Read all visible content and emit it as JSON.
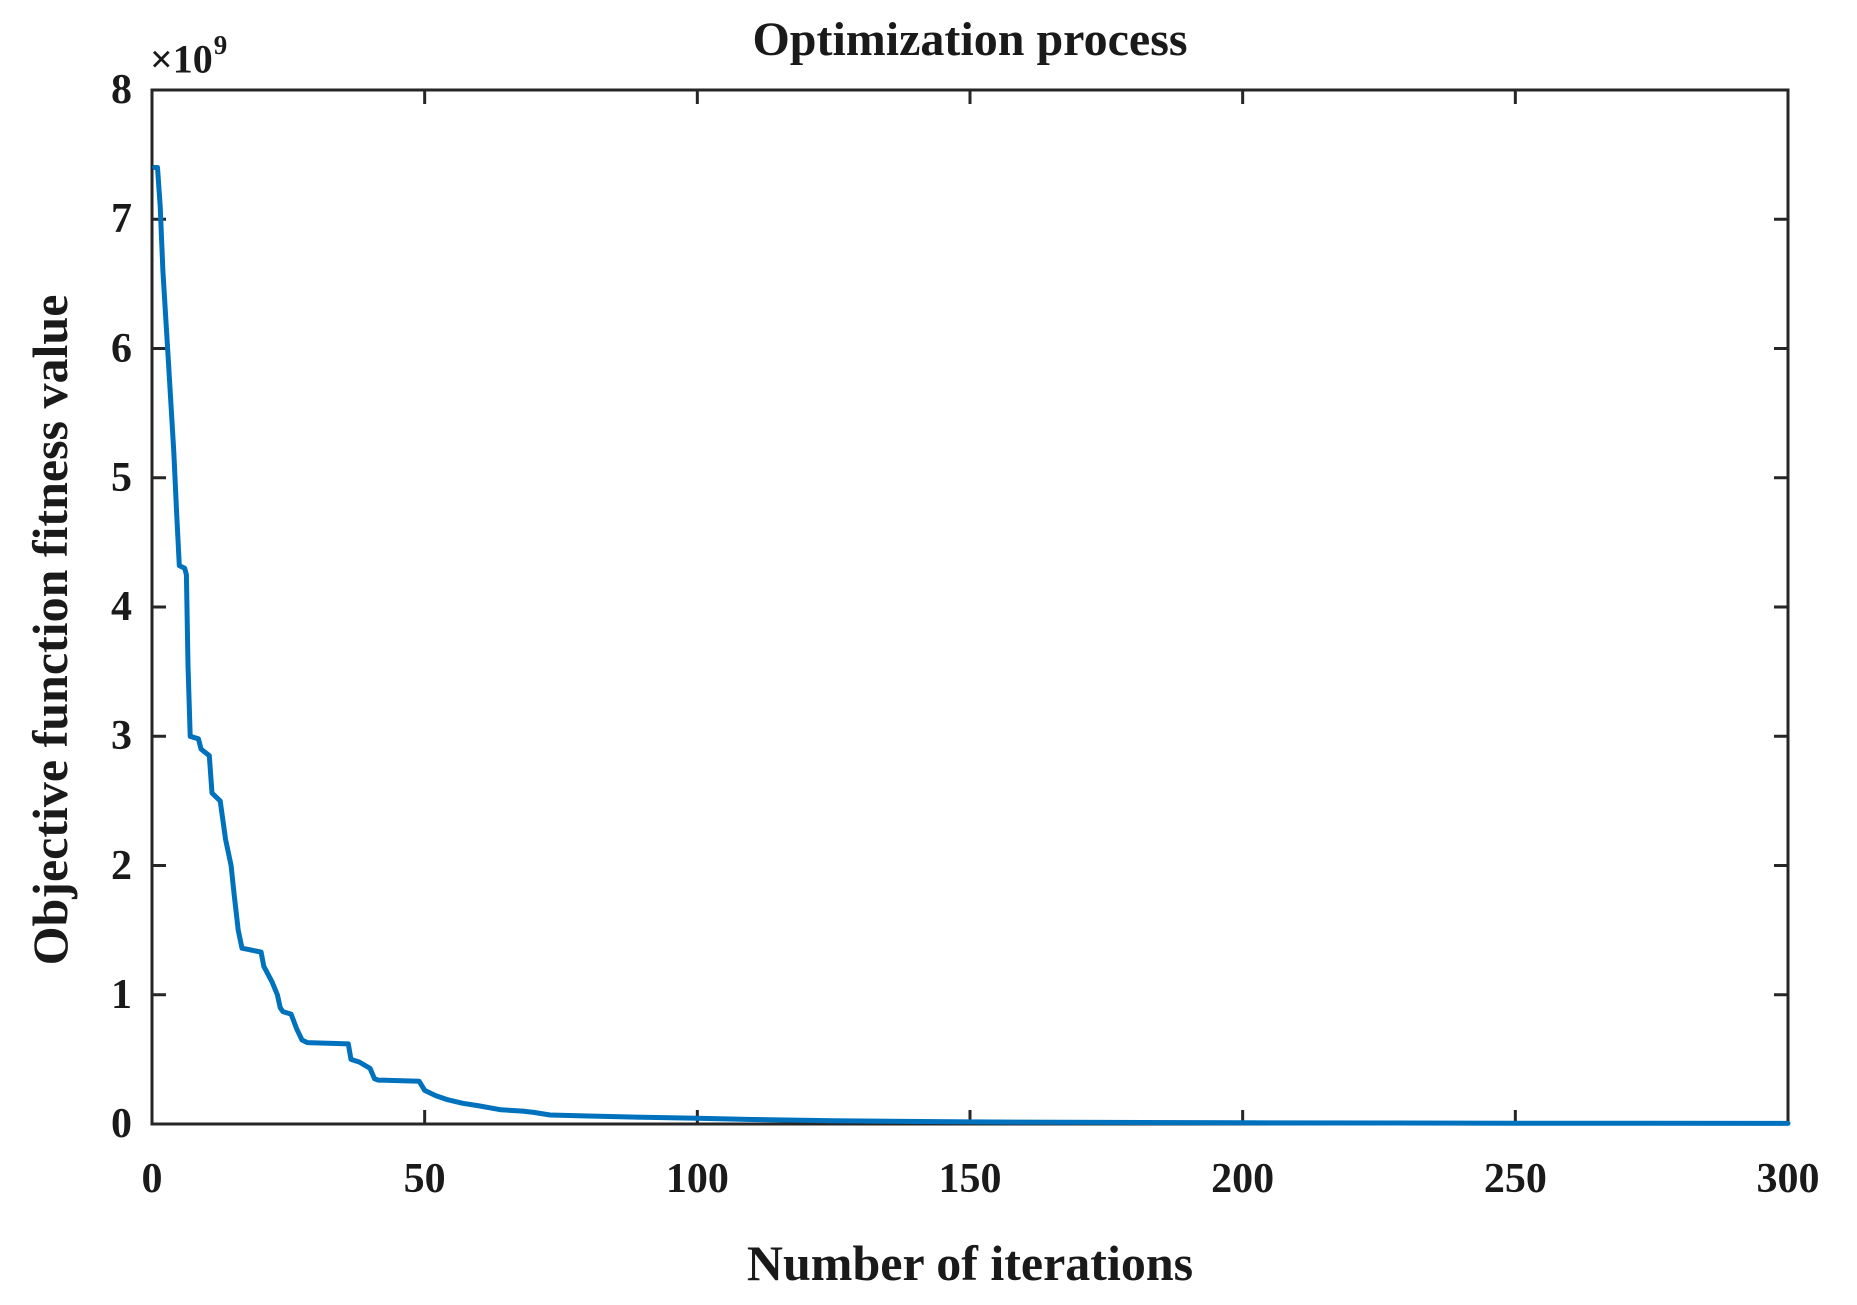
{
  "figure": {
    "background": "#ffffff",
    "axis_color": "#262626",
    "text_color": "#1a1a1a"
  },
  "y_axis": {
    "offset_text": "×10",
    "offset_exponent": "9"
  },
  "chart_data": {
    "type": "line",
    "title": "Optimization process",
    "xlabel": "Number of iterations",
    "ylabel": "Objective function fitness value",
    "xlim": [
      0,
      300
    ],
    "ylim": [
      0,
      8
    ],
    "y_unit_note": "y values and ylim are in units of 1e9; axis offset label shows ×10^9",
    "xticks": [
      0,
      50,
      100,
      150,
      200,
      250,
      300
    ],
    "yticks": [
      0,
      1,
      2,
      3,
      4,
      5,
      6,
      7,
      8
    ],
    "grid": false,
    "legend": false,
    "line_color": "#0072BD",
    "line_width": 5,
    "series": [
      {
        "x": [
          0.5,
          1,
          1.5,
          2,
          3,
          4,
          4.5,
          5,
          6,
          6.3,
          6.6,
          7,
          8.5,
          9,
          10.5,
          11,
          12.5,
          13,
          13.5,
          14.5,
          15,
          15.8,
          16.5,
          20,
          20.5,
          22,
          23,
          23.5,
          24,
          25.5,
          26.5,
          27.5,
          28.5,
          36,
          36.5,
          38,
          40,
          40.8,
          41.5,
          49,
          50,
          52,
          54,
          57,
          60,
          64,
          68,
          70,
          73,
          80,
          90,
          100,
          110,
          125,
          150,
          175,
          200,
          250,
          300
        ],
        "y_times_1e9": [
          7.4,
          7.4,
          7.1,
          6.6,
          5.9,
          5.2,
          4.75,
          4.32,
          4.3,
          4.25,
          3.55,
          3.0,
          2.98,
          2.9,
          2.85,
          2.56,
          2.5,
          2.35,
          2.2,
          2.0,
          1.8,
          1.5,
          1.36,
          1.33,
          1.22,
          1.1,
          1.0,
          0.9,
          0.87,
          0.85,
          0.74,
          0.65,
          0.63,
          0.62,
          0.5,
          0.48,
          0.43,
          0.35,
          0.34,
          0.33,
          0.26,
          0.22,
          0.19,
          0.16,
          0.14,
          0.11,
          0.1,
          0.09,
          0.07,
          0.062,
          0.052,
          0.045,
          0.035,
          0.025,
          0.016,
          0.012,
          0.009,
          0.006,
          0.005
        ]
      }
    ]
  }
}
